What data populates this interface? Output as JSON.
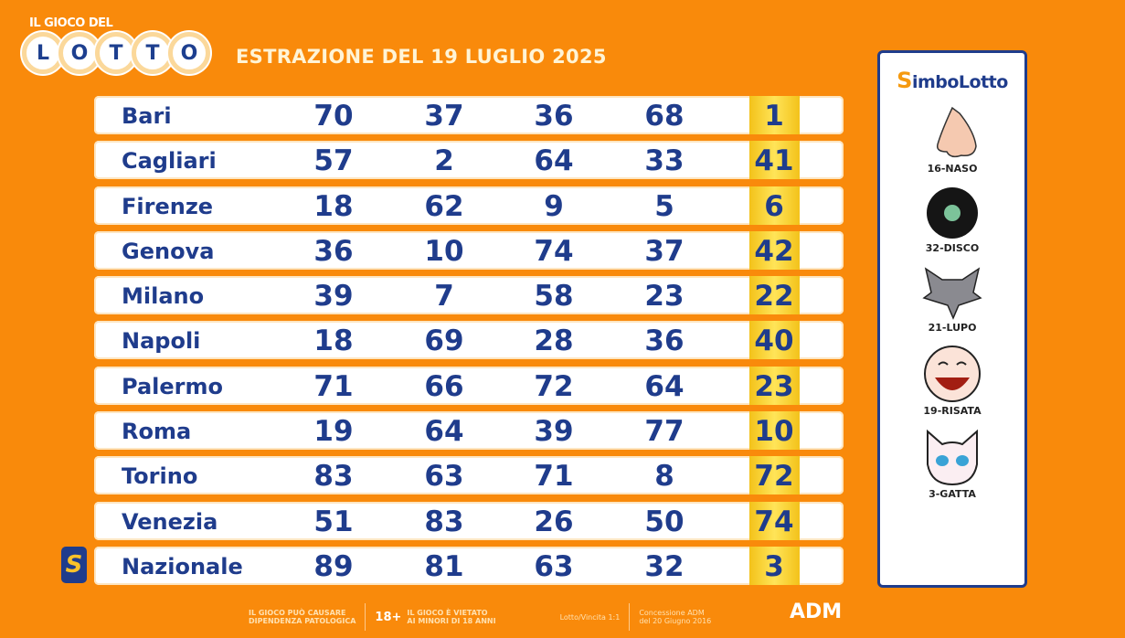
{
  "header": {
    "logo_top": "IL GIOCO DEL",
    "logo_letters": [
      "L",
      "O",
      "T",
      "T",
      "O"
    ],
    "title": "ESTRAZIONE DEL 19 LUGLIO 2025"
  },
  "draws": [
    {
      "city": "Bari",
      "numbers": [
        "70",
        "37",
        "36",
        "68",
        "1"
      ]
    },
    {
      "city": "Cagliari",
      "numbers": [
        "57",
        "2",
        "64",
        "33",
        "41"
      ]
    },
    {
      "city": "Firenze",
      "numbers": [
        "18",
        "62",
        "9",
        "5",
        "6"
      ]
    },
    {
      "city": "Genova",
      "numbers": [
        "36",
        "10",
        "74",
        "37",
        "42"
      ]
    },
    {
      "city": "Milano",
      "numbers": [
        "39",
        "7",
        "58",
        "23",
        "22"
      ]
    },
    {
      "city": "Napoli",
      "numbers": [
        "18",
        "69",
        "28",
        "36",
        "40"
      ]
    },
    {
      "city": "Palermo",
      "numbers": [
        "71",
        "66",
        "72",
        "64",
        "23"
      ]
    },
    {
      "city": "Roma",
      "numbers": [
        "19",
        "64",
        "39",
        "77",
        "10"
      ]
    },
    {
      "city": "Torino",
      "numbers": [
        "83",
        "63",
        "71",
        "8",
        "72"
      ]
    },
    {
      "city": "Venezia",
      "numbers": [
        "51",
        "83",
        "26",
        "50",
        "74"
      ]
    },
    {
      "city": "Nazionale",
      "numbers": [
        "89",
        "81",
        "63",
        "32",
        "3"
      ]
    }
  ],
  "nazionale_badge": "S",
  "simbolotto": {
    "logo_s": "S",
    "logo_rest": "imboLotto",
    "symbols": [
      "16-NASO",
      "32-DISCO",
      "21-LUPO",
      "19-RISATA",
      "3-GATTA"
    ]
  },
  "footer": {
    "warn1": "IL GIOCO PUÒ CAUSARE",
    "warn2": "DIPENDENZA PATOLOGICA",
    "age": "18+",
    "minors1": "IL GIOCO È VIETATO",
    "minors2": "AI MINORI DI 18 ANNI",
    "odds": "Lotto/Vincita 1:1",
    "conc1": "Concessione ADM",
    "conc2": "del 20 Giugno 2016",
    "adm": "ADM"
  },
  "colors": {
    "background": "#f98a0b",
    "text": "#1f3c8c",
    "highlight": "#f3c21a"
  }
}
